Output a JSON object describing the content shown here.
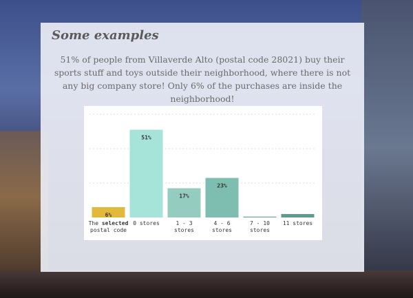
{
  "section": {
    "title": "Some examples",
    "description": "51% of people from Villaverde Alto (postal code 28021) buy their sports stuff and toys outside their neighborhood, where there is not any big company store! Only 6% of the purchases are inside the neighborhood!"
  },
  "chart_data": {
    "type": "bar",
    "title": "",
    "xlabel": "",
    "ylabel": "",
    "ylim": [
      0,
      60
    ],
    "grid": true,
    "categories": [
      {
        "lines": [
          [
            "The ",
            "selected"
          ],
          [
            "postal code"
          ]
        ]
      },
      {
        "lines": [
          [
            "0 stores"
          ]
        ]
      },
      {
        "lines": [
          [
            "1 - 3"
          ],
          [
            "stores"
          ]
        ]
      },
      {
        "lines": [
          [
            "4 - 6"
          ],
          [
            "stores"
          ]
        ]
      },
      {
        "lines": [
          [
            "7 - 10"
          ],
          [
            "stores"
          ]
        ]
      },
      {
        "lines": [
          [
            "11 stores"
          ]
        ]
      }
    ],
    "values": [
      6,
      51,
      17,
      23,
      0.5,
      2
    ],
    "data_labels": [
      "6%",
      "51%",
      "17%",
      "23%",
      "",
      ""
    ],
    "colors": [
      "#e2b93b",
      "#a6e3d8",
      "#94ccc0",
      "#7dbeb0",
      "#6ba89f",
      "#5e9c90"
    ]
  }
}
